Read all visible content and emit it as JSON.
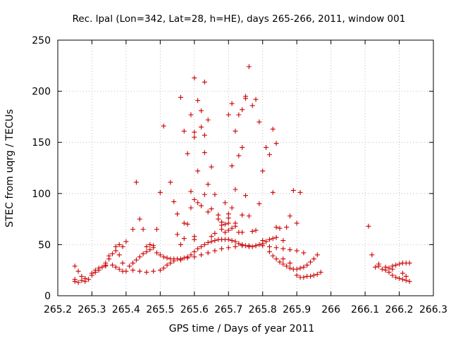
{
  "chart_data": {
    "type": "scatter",
    "title": "Rec. lpal (Lon=342, Lat=28, h=HE), days 265-266, 2011, window 001",
    "xlabel": "GPS time / Days of year 2011",
    "ylabel": "STEC from uqrg / TECUs",
    "xlim": [
      265.2,
      266.3
    ],
    "ylim": [
      0,
      250
    ],
    "xticks": [
      "265.2",
      "265.3",
      "265.4",
      "265.5",
      "265.6",
      "265.7",
      "265.8",
      "265.9",
      "266",
      "266.1",
      "266.2",
      "266.3"
    ],
    "yticks": [
      "0",
      "50",
      "100",
      "150",
      "200",
      "250"
    ],
    "grid": true,
    "marker": "+",
    "color": "#cc0000",
    "points": [
      [
        265.25,
        16
      ],
      [
        265.25,
        14
      ],
      [
        265.25,
        29
      ],
      [
        265.26,
        24
      ],
      [
        265.26,
        13
      ],
      [
        265.27,
        15
      ],
      [
        265.27,
        19
      ],
      [
        265.28,
        14
      ],
      [
        265.28,
        17
      ],
      [
        265.29,
        16
      ],
      [
        265.3,
        20
      ],
      [
        265.3,
        22
      ],
      [
        265.31,
        23
      ],
      [
        265.31,
        25
      ],
      [
        265.32,
        25
      ],
      [
        265.32,
        27
      ],
      [
        265.33,
        28
      ],
      [
        265.34,
        30
      ],
      [
        265.34,
        32
      ],
      [
        265.35,
        36
      ],
      [
        265.35,
        39
      ],
      [
        265.36,
        41
      ],
      [
        265.37,
        44
      ],
      [
        265.37,
        48
      ],
      [
        265.38,
        50
      ],
      [
        265.38,
        40
      ],
      [
        265.39,
        48
      ],
      [
        265.4,
        53
      ],
      [
        265.39,
        32
      ],
      [
        265.36,
        30
      ],
      [
        265.34,
        29
      ],
      [
        265.37,
        28
      ],
      [
        265.38,
        26
      ],
      [
        265.39,
        24
      ],
      [
        265.4,
        24
      ],
      [
        265.42,
        25
      ],
      [
        265.44,
        24
      ],
      [
        265.46,
        23
      ],
      [
        265.48,
        24
      ],
      [
        265.5,
        25
      ],
      [
        265.51,
        27
      ],
      [
        265.52,
        30
      ],
      [
        265.53,
        32
      ],
      [
        265.54,
        34
      ],
      [
        265.56,
        35
      ],
      [
        265.58,
        37
      ],
      [
        265.6,
        38
      ],
      [
        265.62,
        40
      ],
      [
        265.64,
        42
      ],
      [
        265.66,
        44
      ],
      [
        265.68,
        46
      ],
      [
        265.7,
        47
      ],
      [
        265.72,
        48
      ],
      [
        265.74,
        49
      ],
      [
        265.76,
        49
      ],
      [
        265.78,
        49
      ],
      [
        265.8,
        49
      ],
      [
        265.82,
        48
      ],
      [
        265.84,
        47
      ],
      [
        265.86,
        46
      ],
      [
        265.88,
        45
      ],
      [
        265.9,
        44
      ],
      [
        265.92,
        42
      ],
      [
        265.41,
        29
      ],
      [
        265.42,
        32
      ],
      [
        265.43,
        35
      ],
      [
        265.44,
        38
      ],
      [
        265.45,
        41
      ],
      [
        265.46,
        43
      ],
      [
        265.47,
        45
      ],
      [
        265.48,
        47
      ],
      [
        265.49,
        42
      ],
      [
        265.5,
        40
      ],
      [
        265.51,
        38
      ],
      [
        265.52,
        37
      ],
      [
        265.53,
        36
      ],
      [
        265.54,
        36
      ],
      [
        265.55,
        36
      ],
      [
        265.56,
        36
      ],
      [
        265.57,
        37
      ],
      [
        265.58,
        38
      ],
      [
        265.59,
        40
      ],
      [
        265.6,
        43
      ],
      [
        265.61,
        46
      ],
      [
        265.62,
        48
      ],
      [
        265.63,
        50
      ],
      [
        265.64,
        52
      ],
      [
        265.65,
        53
      ],
      [
        265.66,
        54
      ],
      [
        265.67,
        55
      ],
      [
        265.68,
        55
      ],
      [
        265.69,
        55
      ],
      [
        265.7,
        55
      ],
      [
        265.71,
        54
      ],
      [
        265.72,
        53
      ],
      [
        265.73,
        51
      ],
      [
        265.74,
        50
      ],
      [
        265.75,
        49
      ],
      [
        265.76,
        48
      ],
      [
        265.77,
        48
      ],
      [
        265.78,
        49
      ],
      [
        265.79,
        50
      ],
      [
        265.8,
        51
      ],
      [
        265.81,
        53
      ],
      [
        265.82,
        55
      ],
      [
        265.83,
        56
      ],
      [
        265.84,
        57
      ],
      [
        265.42,
        65
      ],
      [
        265.44,
        75
      ],
      [
        265.45,
        65
      ],
      [
        265.43,
        111
      ],
      [
        265.46,
        48
      ],
      [
        265.48,
        49
      ],
      [
        265.47,
        50
      ],
      [
        265.49,
        65
      ],
      [
        265.5,
        101
      ],
      [
        265.51,
        166
      ],
      [
        265.53,
        111
      ],
      [
        265.54,
        92
      ],
      [
        265.55,
        80
      ],
      [
        265.56,
        194
      ],
      [
        265.57,
        161
      ],
      [
        265.58,
        139
      ],
      [
        265.59,
        177
      ],
      [
        265.6,
        213
      ],
      [
        265.61,
        191
      ],
      [
        265.62,
        181
      ],
      [
        265.63,
        209
      ],
      [
        265.64,
        172
      ],
      [
        265.6,
        160
      ],
      [
        265.62,
        165
      ],
      [
        265.63,
        157
      ],
      [
        265.6,
        155
      ],
      [
        265.61,
        122
      ],
      [
        265.63,
        140
      ],
      [
        265.64,
        109
      ],
      [
        265.65,
        126
      ],
      [
        265.66,
        99
      ],
      [
        265.63,
        99
      ],
      [
        265.62,
        88
      ],
      [
        265.61,
        91
      ],
      [
        265.64,
        82
      ],
      [
        265.65,
        85
      ],
      [
        265.67,
        79
      ],
      [
        265.69,
        91
      ],
      [
        265.7,
        177
      ],
      [
        265.71,
        188
      ],
      [
        265.72,
        161
      ],
      [
        265.73,
        177
      ],
      [
        265.74,
        182
      ],
      [
        265.75,
        193
      ],
      [
        265.75,
        195
      ],
      [
        265.76,
        224
      ],
      [
        265.77,
        186
      ],
      [
        265.78,
        192
      ],
      [
        265.79,
        170
      ],
      [
        265.8,
        122
      ],
      [
        265.81,
        145
      ],
      [
        265.82,
        138
      ],
      [
        265.83,
        163
      ],
      [
        265.84,
        149
      ],
      [
        265.71,
        127
      ],
      [
        265.72,
        104
      ],
      [
        265.74,
        145
      ],
      [
        265.73,
        137
      ],
      [
        265.7,
        80
      ],
      [
        265.71,
        86
      ],
      [
        265.68,
        69
      ],
      [
        265.67,
        75
      ],
      [
        265.66,
        61
      ],
      [
        265.65,
        58
      ],
      [
        265.72,
        71
      ],
      [
        265.74,
        79
      ],
      [
        265.75,
        98
      ],
      [
        265.76,
        78
      ],
      [
        265.77,
        63
      ],
      [
        265.78,
        64
      ],
      [
        265.79,
        90
      ],
      [
        265.8,
        54
      ],
      [
        265.83,
        101
      ],
      [
        265.84,
        67
      ],
      [
        265.85,
        66
      ],
      [
        265.86,
        54
      ],
      [
        265.87,
        67
      ],
      [
        265.88,
        78
      ],
      [
        265.89,
        103
      ],
      [
        265.91,
        101
      ],
      [
        265.9,
        71
      ],
      [
        265.55,
        60
      ],
      [
        265.56,
        50
      ],
      [
        265.57,
        56
      ],
      [
        265.58,
        70
      ],
      [
        265.59,
        102
      ],
      [
        265.6,
        94
      ],
      [
        265.57,
        71
      ],
      [
        265.59,
        86
      ],
      [
        265.6,
        58
      ],
      [
        265.6,
        55
      ],
      [
        265.68,
        65
      ],
      [
        265.69,
        62
      ],
      [
        265.7,
        64
      ],
      [
        265.71,
        66
      ],
      [
        265.72,
        68
      ],
      [
        265.73,
        62
      ],
      [
        265.74,
        62
      ],
      [
        265.68,
        72
      ],
      [
        265.69,
        70
      ],
      [
        265.7,
        76
      ],
      [
        265.7,
        71
      ],
      [
        265.82,
        43
      ],
      [
        265.83,
        39
      ],
      [
        265.84,
        36
      ],
      [
        265.85,
        33
      ],
      [
        265.86,
        31
      ],
      [
        265.87,
        29
      ],
      [
        265.88,
        27
      ],
      [
        265.89,
        26
      ],
      [
        265.9,
        26
      ],
      [
        265.91,
        27
      ],
      [
        265.92,
        28
      ],
      [
        265.93,
        30
      ],
      [
        265.94,
        33
      ],
      [
        265.95,
        36
      ],
      [
        265.96,
        40
      ],
      [
        265.86,
        36
      ],
      [
        265.88,
        32
      ],
      [
        265.9,
        20
      ],
      [
        265.91,
        18
      ],
      [
        265.92,
        18
      ],
      [
        265.93,
        19
      ],
      [
        265.94,
        19
      ],
      [
        265.95,
        20
      ],
      [
        265.96,
        21
      ],
      [
        265.97,
        23
      ],
      [
        266.11,
        68
      ],
      [
        266.12,
        40
      ],
      [
        266.13,
        28
      ],
      [
        266.14,
        29
      ],
      [
        266.15,
        26
      ],
      [
        266.16,
        25
      ],
      [
        266.17,
        27
      ],
      [
        266.18,
        29
      ],
      [
        266.19,
        30
      ],
      [
        266.2,
        31
      ],
      [
        266.21,
        32
      ],
      [
        266.22,
        32
      ],
      [
        266.23,
        32
      ],
      [
        266.14,
        31
      ],
      [
        266.16,
        28
      ],
      [
        266.17,
        23
      ],
      [
        266.18,
        20
      ],
      [
        266.19,
        18
      ],
      [
        266.2,
        17
      ],
      [
        266.21,
        16
      ],
      [
        266.22,
        15
      ],
      [
        266.23,
        14
      ],
      [
        266.21,
        22
      ],
      [
        266.22,
        19
      ],
      [
        266.18,
        26
      ]
    ]
  }
}
